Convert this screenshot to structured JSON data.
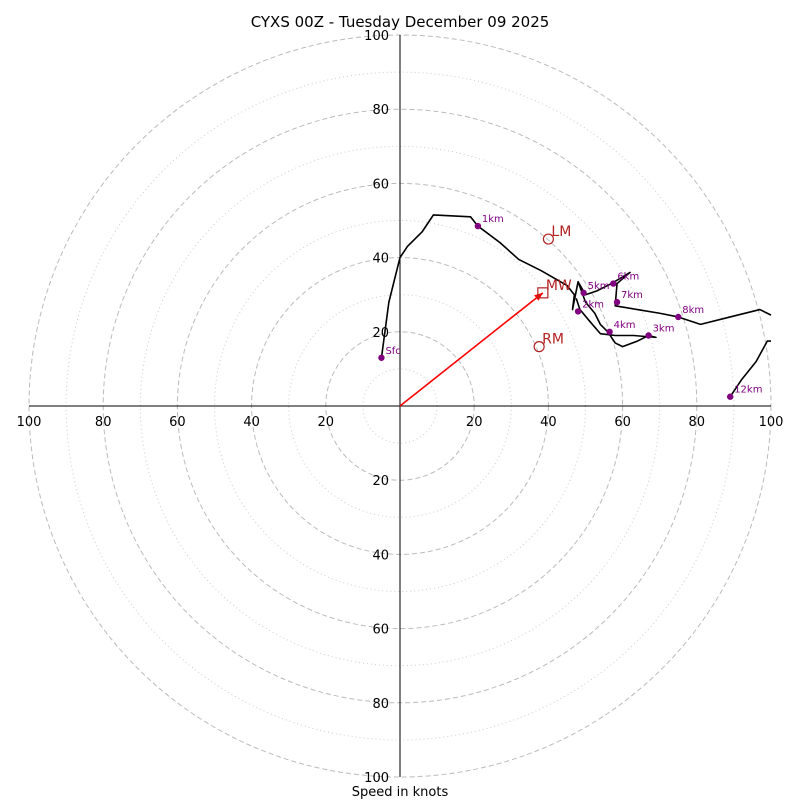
{
  "chart_data": {
    "type": "hodograph",
    "title": "CYXS 00Z - Tuesday December 09 2025",
    "xlabel": "Speed in knots",
    "range": [
      -100,
      100
    ],
    "ring_major": [
      20,
      40,
      60,
      80,
      100
    ],
    "ring_minor": [
      10,
      30,
      50,
      70,
      90
    ],
    "ticks": {
      "x_left": [
        "100",
        "80",
        "60",
        "40",
        "20"
      ],
      "x_right": [
        "20",
        "40",
        "60",
        "80",
        "100"
      ],
      "y_top": [
        "100",
        "80",
        "60",
        "40",
        "20"
      ],
      "y_bottom": [
        "20",
        "40",
        "60",
        "80",
        "100"
      ]
    },
    "colors": {
      "trace": "#000000",
      "height_marker": "#800080",
      "motion": "#b22222",
      "shear_vector": "#ff0000",
      "ring": "#bbbbbb"
    },
    "trace": [
      [
        -5,
        13
      ],
      [
        -3,
        28
      ],
      [
        0,
        40
      ],
      [
        2,
        43
      ],
      [
        6,
        47
      ],
      [
        8,
        50
      ],
      [
        9,
        51.5
      ],
      [
        19,
        51
      ],
      [
        21,
        48.5
      ],
      [
        27,
        44
      ],
      [
        32,
        39.5
      ],
      [
        38,
        36.5
      ],
      [
        45,
        32.5
      ],
      [
        47,
        30
      ],
      [
        46.5,
        26
      ],
      [
        48,
        33.5
      ],
      [
        50,
        30
      ],
      [
        53,
        31
      ],
      [
        57,
        33
      ],
      [
        62,
        36
      ],
      [
        58.5,
        33
      ],
      [
        58,
        27
      ],
      [
        64,
        26
      ],
      [
        70,
        25
      ],
      [
        75,
        24
      ],
      [
        81,
        22
      ],
      [
        89,
        24
      ],
      [
        97,
        26
      ],
      [
        100,
        24.5
      ]
    ],
    "trace_lower": [
      [
        100,
        17.5
      ],
      [
        99,
        17.5
      ],
      [
        96,
        12
      ],
      [
        92,
        7
      ],
      [
        89,
        2.5
      ]
    ],
    "trace_mid": [
      [
        48,
        33.5
      ],
      [
        50,
        28
      ],
      [
        52.5,
        25
      ],
      [
        54,
        22
      ],
      [
        56,
        20
      ],
      [
        58,
        17
      ],
      [
        60,
        16
      ],
      [
        64,
        17.5
      ],
      [
        67,
        19
      ],
      [
        69,
        18.5
      ],
      [
        63,
        19
      ],
      [
        58,
        19
      ],
      [
        54,
        19.5
      ],
      [
        51,
        23
      ],
      [
        48.5,
        26
      ],
      [
        47.5,
        29
      ]
    ],
    "heights": [
      {
        "label": "Sfc",
        "u": -5,
        "v": 13
      },
      {
        "label": "1km",
        "u": 21,
        "v": 48.5
      },
      {
        "label": "2km",
        "u": 48,
        "v": 25.5
      },
      {
        "label": "3km",
        "u": 67,
        "v": 19
      },
      {
        "label": "4km",
        "u": 56.5,
        "v": 20
      },
      {
        "label": "5km",
        "u": 49.5,
        "v": 30.5
      },
      {
        "label": "6km",
        "u": 57.5,
        "v": 33
      },
      {
        "label": "7km",
        "u": 58.5,
        "v": 28
      },
      {
        "label": "8km",
        "u": 75,
        "v": 24
      },
      {
        "label": "12km",
        "u": 89,
        "v": 2.5
      }
    ],
    "storm_motion": [
      {
        "label": "LM",
        "u": 40,
        "v": 45,
        "marker": "circle"
      },
      {
        "label": "MW",
        "u": 38.5,
        "v": 30.5,
        "marker": "square"
      },
      {
        "label": "RM",
        "u": 37.5,
        "v": 16,
        "marker": "circle"
      }
    ],
    "shear_vector": {
      "from": [
        0,
        0
      ],
      "to": [
        38.5,
        30.5
      ]
    }
  }
}
